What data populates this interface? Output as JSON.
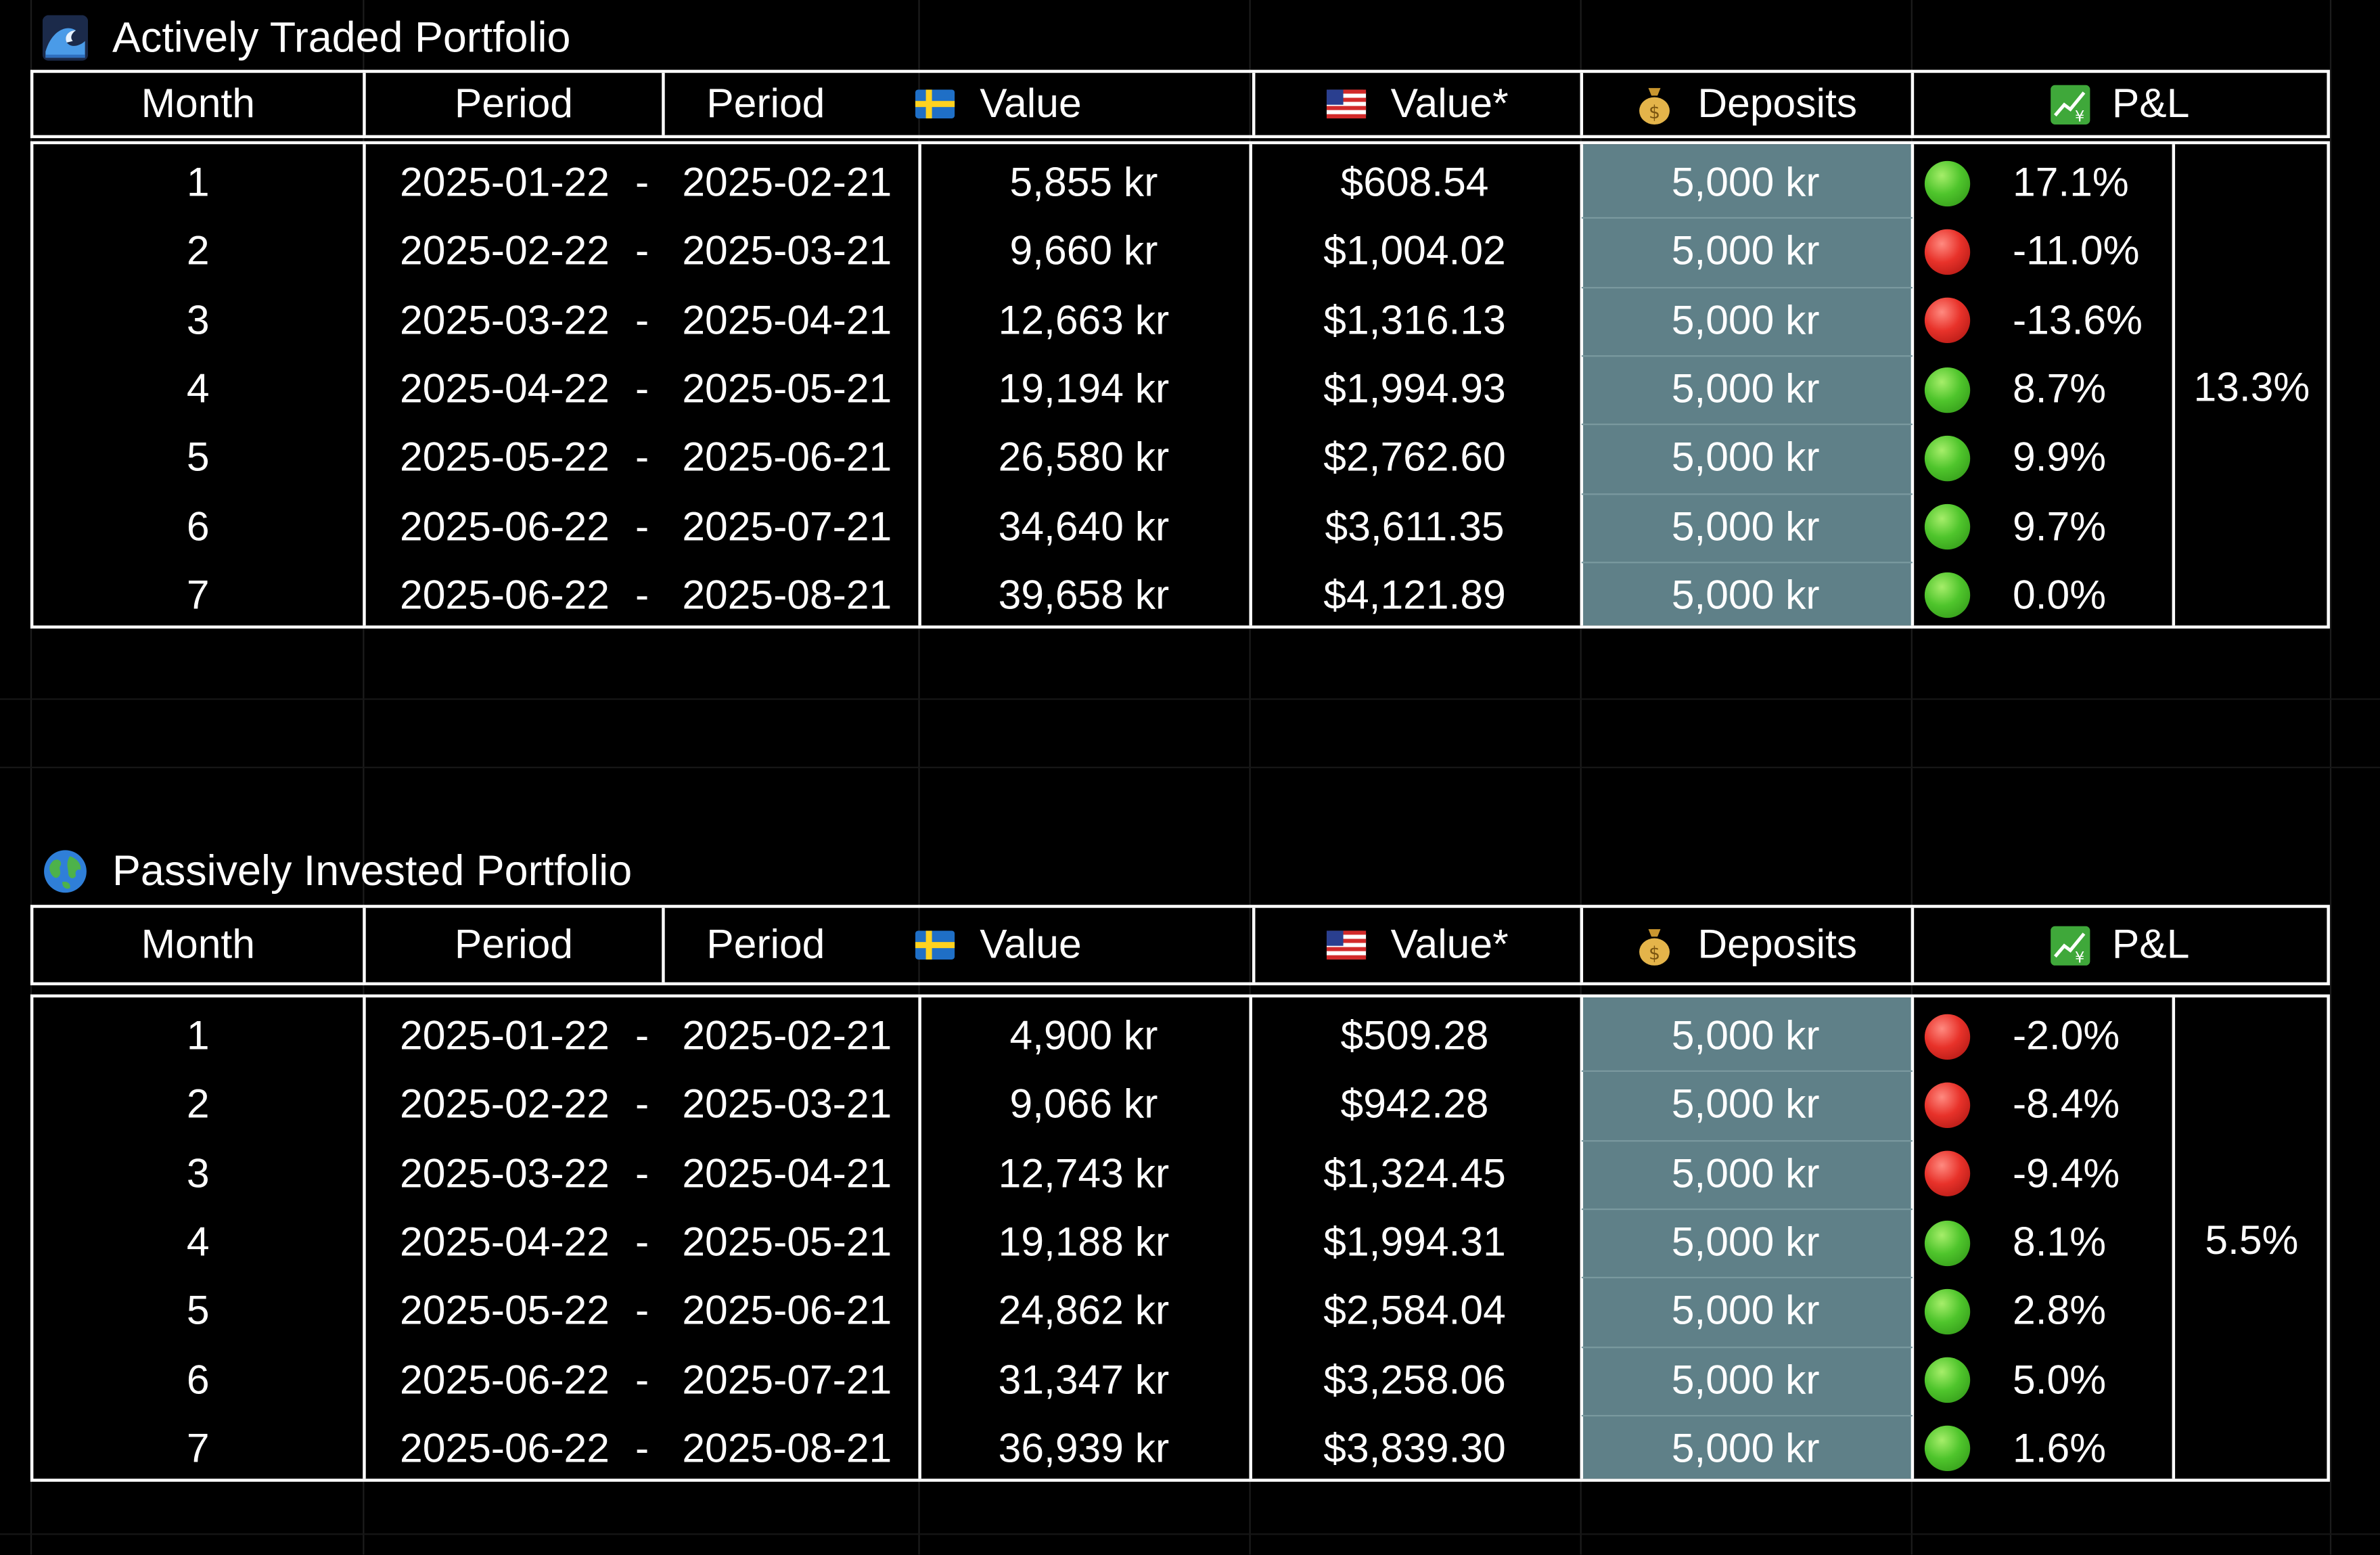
{
  "headers": {
    "month": "Month",
    "period_start": "Period",
    "period_end": "Period",
    "sek_value": "Value",
    "usd_value": "Value*",
    "deposits": "Deposits",
    "pnl": "P&L"
  },
  "active": {
    "title": "Actively Traded Portfolio",
    "title_icon": "wave-icon",
    "avg_pnl": "13.3%",
    "rows": [
      {
        "month": "1",
        "start": "2025-01-22",
        "sep": "-",
        "end": "2025-02-21",
        "sek": "5,855 kr",
        "usd": "$608.54",
        "deposit": "5,000 kr",
        "status": "green",
        "pnl": "17.1%"
      },
      {
        "month": "2",
        "start": "2025-02-22",
        "sep": "-",
        "end": "2025-03-21",
        "sek": "9,660 kr",
        "usd": "$1,004.02",
        "deposit": "5,000 kr",
        "status": "red",
        "pnl": "-11.0%"
      },
      {
        "month": "3",
        "start": "2025-03-22",
        "sep": "-",
        "end": "2025-04-21",
        "sek": "12,663 kr",
        "usd": "$1,316.13",
        "deposit": "5,000 kr",
        "status": "red",
        "pnl": "-13.6%"
      },
      {
        "month": "4",
        "start": "2025-04-22",
        "sep": "-",
        "end": "2025-05-21",
        "sek": "19,194 kr",
        "usd": "$1,994.93",
        "deposit": "5,000 kr",
        "status": "green",
        "pnl": "8.7%"
      },
      {
        "month": "5",
        "start": "2025-05-22",
        "sep": "-",
        "end": "2025-06-21",
        "sek": "26,580 kr",
        "usd": "$2,762.60",
        "deposit": "5,000 kr",
        "status": "green",
        "pnl": "9.9%"
      },
      {
        "month": "6",
        "start": "2025-06-22",
        "sep": "-",
        "end": "2025-07-21",
        "sek": "34,640 kr",
        "usd": "$3,611.35",
        "deposit": "5,000 kr",
        "status": "green",
        "pnl": "9.7%"
      },
      {
        "month": "7",
        "start": "2025-06-22",
        "sep": "-",
        "end": "2025-08-21",
        "sek": "39,658 kr",
        "usd": "$4,121.89",
        "deposit": "5,000 kr",
        "status": "green",
        "pnl": "0.0%"
      }
    ]
  },
  "passive": {
    "title": "Passively Invested Portfolio",
    "title_icon": "globe-icon",
    "avg_pnl": "5.5%",
    "rows": [
      {
        "month": "1",
        "start": "2025-01-22",
        "sep": "-",
        "end": "2025-02-21",
        "sek": "4,900 kr",
        "usd": "$509.28",
        "deposit": "5,000 kr",
        "status": "red",
        "pnl": "-2.0%"
      },
      {
        "month": "2",
        "start": "2025-02-22",
        "sep": "-",
        "end": "2025-03-21",
        "sek": "9,066 kr",
        "usd": "$942.28",
        "deposit": "5,000 kr",
        "status": "red",
        "pnl": "-8.4%"
      },
      {
        "month": "3",
        "start": "2025-03-22",
        "sep": "-",
        "end": "2025-04-21",
        "sek": "12,743 kr",
        "usd": "$1,324.45",
        "deposit": "5,000 kr",
        "status": "red",
        "pnl": "-9.4%"
      },
      {
        "month": "4",
        "start": "2025-04-22",
        "sep": "-",
        "end": "2025-05-21",
        "sek": "19,188 kr",
        "usd": "$1,994.31",
        "deposit": "5,000 kr",
        "status": "green",
        "pnl": "8.1%"
      },
      {
        "month": "5",
        "start": "2025-05-22",
        "sep": "-",
        "end": "2025-06-21",
        "sek": "24,862 kr",
        "usd": "$2,584.04",
        "deposit": "5,000 kr",
        "status": "green",
        "pnl": "2.8%"
      },
      {
        "month": "6",
        "start": "2025-06-22",
        "sep": "-",
        "end": "2025-07-21",
        "sek": "31,347 kr",
        "usd": "$3,258.06",
        "deposit": "5,000 kr",
        "status": "green",
        "pnl": "5.0%"
      },
      {
        "month": "7",
        "start": "2025-06-22",
        "sep": "-",
        "end": "2025-08-21",
        "sek": "36,939 kr",
        "usd": "$3,839.30",
        "deposit": "5,000 kr",
        "status": "green",
        "pnl": "1.6%"
      }
    ]
  },
  "colors": {
    "background": "#000000",
    "grid_line": "#ffffff",
    "deposit_column": "#5f8088",
    "status_green": "#4fc52c",
    "status_red": "#e8322a"
  },
  "icons": {
    "sek_flag": "sweden-flag-icon",
    "usd_flag": "usa-flag-icon",
    "deposits": "money-bag-icon",
    "pnl": "chart-increasing-icon"
  }
}
